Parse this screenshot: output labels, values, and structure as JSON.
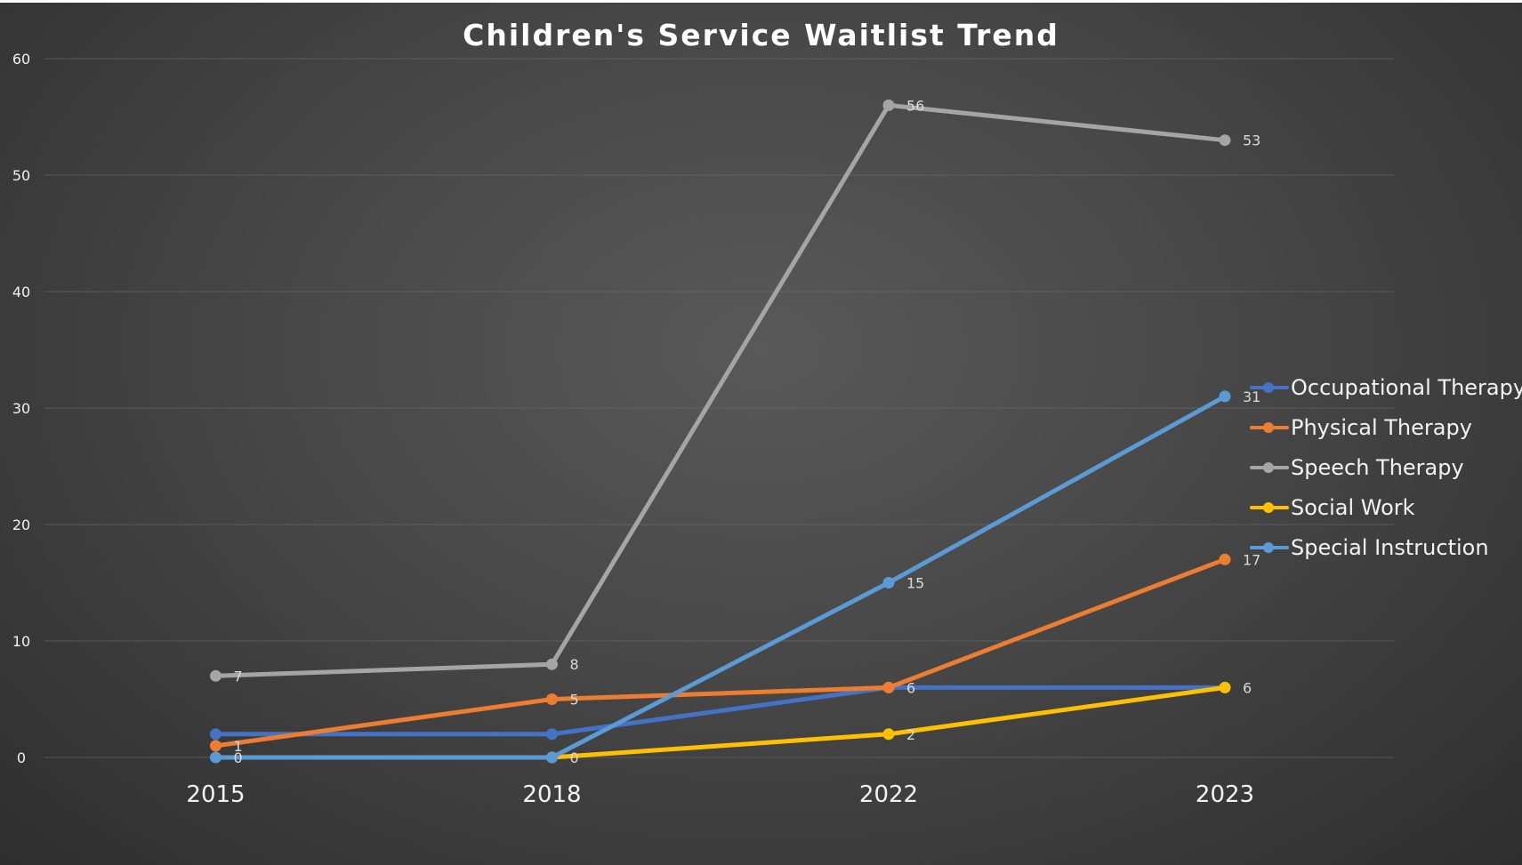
{
  "chart_data": {
    "type": "line",
    "title": "Children's Service Waitlist Trend",
    "xlabel": "",
    "ylabel": "",
    "categories": [
      "2015",
      "2018",
      "2022",
      "2023"
    ],
    "ylim": [
      0,
      60
    ],
    "yticks": [
      0,
      10,
      20,
      30,
      40,
      50,
      60
    ],
    "grid": true,
    "legend_position": "right",
    "series": [
      {
        "name": "Occupational Therapy",
        "color": "#4472C4",
        "values": [
          2,
          2,
          6,
          6
        ],
        "labels": [
          "",
          "",
          "",
          ""
        ]
      },
      {
        "name": "Physical Therapy",
        "color": "#ED7D31",
        "values": [
          1,
          5,
          6,
          17
        ],
        "labels": [
          "1",
          "5",
          "6",
          "17"
        ]
      },
      {
        "name": "Speech Therapy",
        "color": "#A5A5A5",
        "values": [
          7,
          8,
          56,
          53
        ],
        "labels": [
          "7",
          "8",
          "56",
          "53"
        ]
      },
      {
        "name": "Social Work",
        "color": "#FFC000",
        "values": [
          null,
          0,
          2,
          6
        ],
        "labels": [
          "",
          "",
          "2",
          "6"
        ]
      },
      {
        "name": "Special Instruction",
        "color": "#5B9BD5",
        "values": [
          0,
          0,
          15,
          31
        ],
        "labels": [
          "0",
          "0",
          "15",
          "31"
        ]
      }
    ]
  }
}
